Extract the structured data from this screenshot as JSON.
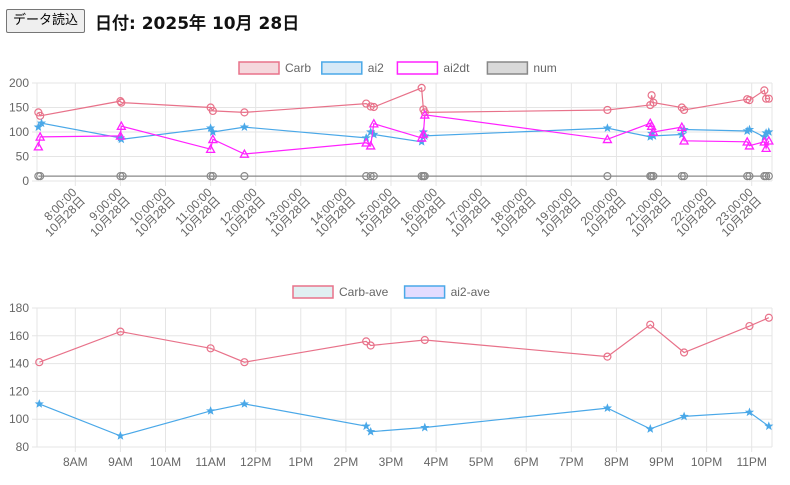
{
  "toolbar": {
    "load_label": "データ読込"
  },
  "header": {
    "date_title": "日付: 2025年 10月 28日"
  },
  "chart_data": [
    {
      "type": "line",
      "legend": [
        {
          "name": "Carb",
          "stroke": "#e8728a",
          "fill": "#f5d8dd"
        },
        {
          "name": "ai2",
          "stroke": "#4aa8e8",
          "fill": "#d6e9f7"
        },
        {
          "name": "ai2dt",
          "stroke": "#ff22ff",
          "fill": "#ffffff"
        },
        {
          "name": "num",
          "stroke": "#888888",
          "fill": "#d9d9d9"
        }
      ],
      "ylim": [
        0,
        200
      ],
      "yticks": [
        "200",
        "150",
        "100",
        "50",
        "0"
      ],
      "xlim": [
        7.15,
        23.45
      ],
      "xtick_hours": [
        8,
        9,
        10,
        11,
        12,
        13,
        14,
        15,
        16,
        17,
        18,
        19,
        20,
        21,
        22,
        23
      ],
      "xtick_labels": [
        [
          "8:00:00",
          "10月28日"
        ],
        [
          "9:00:00",
          "10月28日"
        ],
        [
          "10:00:00",
          "10月28日"
        ],
        [
          "11:00:00",
          "10月28日"
        ],
        [
          "12:00:00",
          "10月28日"
        ],
        [
          "13:00:00",
          "10月28日"
        ],
        [
          "14:00:00",
          "10月28日"
        ],
        [
          "15:00:00",
          "10月28日"
        ],
        [
          "16:00:00",
          "10月28日"
        ],
        [
          "17:00:00",
          "10月28日"
        ],
        [
          "18:00:00",
          "10月28日"
        ],
        [
          "19:00:00",
          "10月28日"
        ],
        [
          "20:00:00",
          "10月28日"
        ],
        [
          "21:00:00",
          "10月28日"
        ],
        [
          "22:00:00",
          "10月28日"
        ],
        [
          "23:00:00",
          "10月28日"
        ]
      ],
      "series": [
        {
          "name": "Carb",
          "marker": "circle",
          "x": [
            7.18,
            7.22,
            9.0,
            9.02,
            11.0,
            11.05,
            11.75,
            14.45,
            14.55,
            14.62,
            15.68,
            15.72,
            15.75,
            19.8,
            20.75,
            20.78,
            20.82,
            21.45,
            21.5,
            22.9,
            22.95,
            23.28,
            23.32,
            23.38
          ],
          "y": [
            140,
            133,
            163,
            160,
            150,
            143,
            140,
            158,
            152,
            151,
            190,
            146,
            140,
            145,
            155,
            175,
            160,
            150,
            145,
            167,
            165,
            185,
            168,
            168
          ]
        },
        {
          "name": "ai2",
          "marker": "star",
          "x": [
            7.18,
            7.25,
            9.0,
            9.02,
            11.0,
            11.05,
            11.75,
            14.45,
            14.55,
            14.62,
            15.68,
            15.72,
            15.75,
            19.8,
            20.75,
            20.78,
            20.82,
            21.45,
            21.5,
            22.9,
            22.95,
            23.28,
            23.32,
            23.38
          ],
          "y": [
            110,
            118,
            88,
            85,
            108,
            100,
            110,
            88,
            100,
            95,
            80,
            100,
            92,
            108,
            90,
            97,
            92,
            95,
            105,
            102,
            105,
            90,
            98,
            100
          ]
        },
        {
          "name": "ai2dt",
          "marker": "triangle",
          "x": [
            7.18,
            7.22,
            9.0,
            9.02,
            11.0,
            11.05,
            11.75,
            14.45,
            14.55,
            14.62,
            15.68,
            15.72,
            15.75,
            19.8,
            20.75,
            20.78,
            20.82,
            21.45,
            21.5,
            22.9,
            22.95,
            23.28,
            23.32,
            23.38
          ],
          "y": [
            70,
            90,
            92,
            112,
            65,
            85,
            55,
            78,
            72,
            117,
            88,
            96,
            135,
            85,
            118,
            112,
            100,
            110,
            82,
            80,
            72,
            80,
            67,
            82
          ]
        },
        {
          "name": "num",
          "marker": "circle",
          "x": [
            7.18,
            7.22,
            9.0,
            9.05,
            11.0,
            11.05,
            11.75,
            14.45,
            14.55,
            14.62,
            15.68,
            15.72,
            15.75,
            19.8,
            20.75,
            20.78,
            20.82,
            21.45,
            21.5,
            22.9,
            22.95,
            23.28,
            23.32,
            23.38
          ],
          "y": [
            10,
            10,
            10,
            10,
            10,
            10,
            10,
            10,
            10,
            10,
            10,
            10,
            10,
            10,
            10,
            10,
            10,
            10,
            10,
            10,
            10,
            10,
            10,
            10
          ]
        }
      ]
    },
    {
      "type": "line",
      "legend": [
        {
          "name": "Carb-ave",
          "stroke": "#e8728a",
          "fill": "#e0f0f2"
        },
        {
          "name": "ai2-ave",
          "stroke": "#4aa8e8",
          "fill": "#e4dcff"
        }
      ],
      "ylim": [
        80,
        180
      ],
      "yticks": [
        "180",
        "160",
        "140",
        "120",
        "100",
        "80"
      ],
      "xlim": [
        7.15,
        23.45
      ],
      "xtick_hours": [
        8,
        9,
        10,
        11,
        12,
        13,
        14,
        15,
        16,
        17,
        18,
        19,
        20,
        21,
        22,
        23
      ],
      "xtick_labels": [
        "8AM",
        "9AM",
        "10AM",
        "11AM",
        "12PM",
        "1PM",
        "2PM",
        "3PM",
        "4PM",
        "5PM",
        "6PM",
        "7PM",
        "8PM",
        "9PM",
        "10PM",
        "11PM"
      ],
      "series": [
        {
          "name": "Carb-ave",
          "marker": "circle",
          "x": [
            7.2,
            9.0,
            11.0,
            11.75,
            14.45,
            14.55,
            15.75,
            19.8,
            20.75,
            21.5,
            22.95,
            23.38
          ],
          "y": [
            141,
            163,
            151,
            141,
            156,
            153,
            157,
            145,
            168,
            148,
            167,
            173
          ]
        },
        {
          "name": "ai2-ave",
          "marker": "star",
          "x": [
            7.2,
            9.0,
            11.0,
            11.75,
            14.45,
            14.55,
            15.75,
            19.8,
            20.75,
            21.5,
            22.95,
            23.38
          ],
          "y": [
            111,
            88,
            106,
            111,
            95,
            91,
            94,
            108,
            93,
            102,
            105,
            95
          ]
        }
      ]
    }
  ]
}
